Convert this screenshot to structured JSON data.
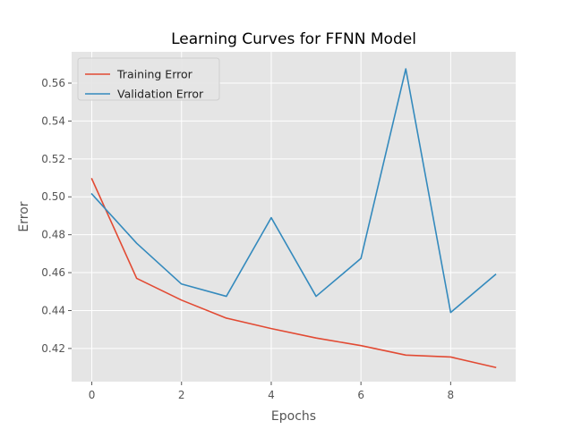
{
  "chart_data": {
    "type": "line",
    "title": "Learning Curves for FFNN Model",
    "xlabel": "Epochs",
    "ylabel": "Error",
    "x": [
      0,
      1,
      2,
      3,
      4,
      5,
      6,
      7,
      8,
      9
    ],
    "xlim": [
      -0.45,
      9.45
    ],
    "ylim": [
      0.4025,
      0.5765
    ],
    "xticks": [
      0,
      2,
      4,
      6,
      8
    ],
    "yticks": [
      0.42,
      0.44,
      0.46,
      0.48,
      0.5,
      0.52,
      0.54,
      0.56
    ],
    "ytick_labels": [
      "0.42",
      "0.44",
      "0.46",
      "0.48",
      "0.50",
      "0.52",
      "0.54",
      "0.56"
    ],
    "grid": true,
    "legend_position": "top-left",
    "series": [
      {
        "name": "Training Error",
        "color": "#E24A33",
        "values": [
          0.5095,
          0.457,
          0.4455,
          0.436,
          0.4305,
          0.4255,
          0.4215,
          0.4165,
          0.4155,
          0.41
        ]
      },
      {
        "name": "Validation Error",
        "color": "#348ABD",
        "values": [
          0.5015,
          0.4755,
          0.454,
          0.4475,
          0.489,
          0.4475,
          0.4675,
          0.5675,
          0.439,
          0.459
        ]
      }
    ]
  }
}
